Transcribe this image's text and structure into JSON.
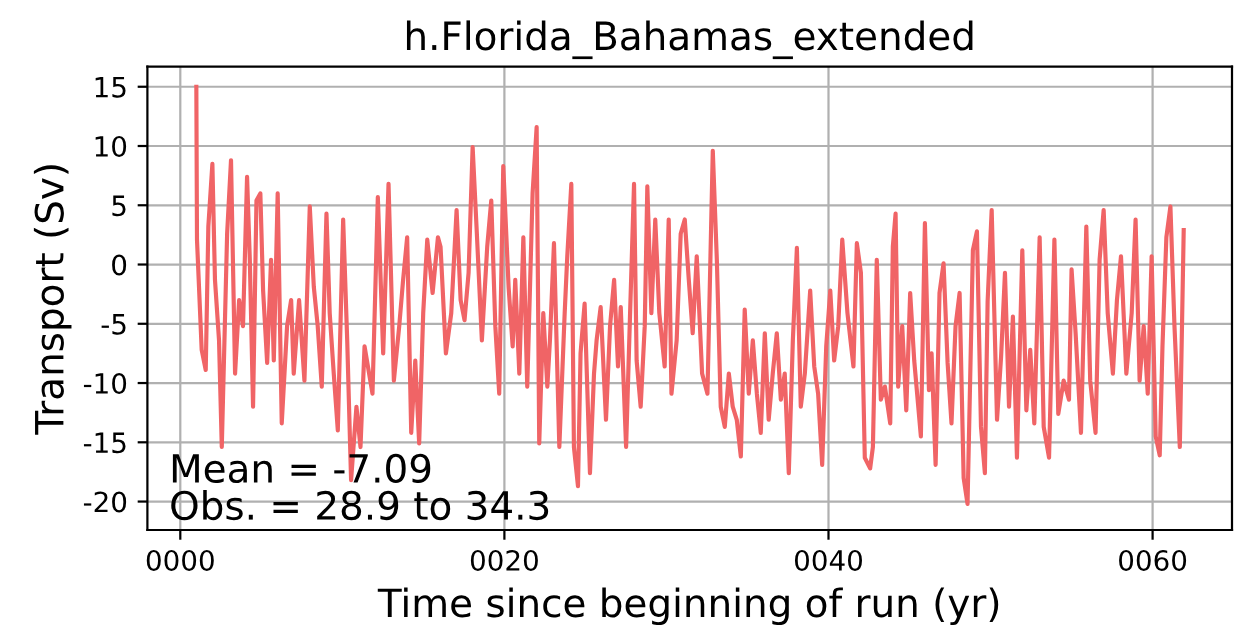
{
  "chart_data": {
    "type": "line",
    "title": "h.Florida_Bahamas_extended",
    "xlabel": "Time since beginning of run (yr)",
    "ylabel": "Transport (Sv)",
    "xlim": [
      -2.03,
      64.9
    ],
    "ylim": [
      -22.4,
      16.7
    ],
    "xticks": [
      {
        "value": 0,
        "label": "0000"
      },
      {
        "value": 20,
        "label": "0020"
      },
      {
        "value": 40,
        "label": "0040"
      },
      {
        "value": 60,
        "label": "0060"
      }
    ],
    "yticks": [
      -20,
      -15,
      -10,
      -5,
      0,
      5,
      10,
      15
    ],
    "grid": true,
    "annotations": [
      "Mean = -7.09",
      "Obs. = 28.9 to 34.3"
    ],
    "series": [
      {
        "color": "#f06466",
        "x": [
          0.99,
          1.03,
          1.32,
          1.57,
          1.73,
          1.98,
          2.14,
          2.39,
          2.56,
          2.89,
          3.13,
          3.38,
          3.63,
          3.87,
          4.12,
          4.29,
          4.49,
          4.7,
          4.94,
          5.11,
          5.36,
          5.6,
          5.77,
          6.01,
          6.26,
          6.59,
          6.84,
          7.0,
          7.33,
          7.66,
          7.99,
          8.24,
          8.48,
          8.73,
          9.02,
          9.22,
          9.47,
          9.72,
          10.05,
          10.3,
          10.54,
          10.87,
          11.12,
          11.37,
          11.86,
          12.19,
          12.52,
          12.85,
          13.18,
          13.51,
          13.75,
          14.0,
          14.25,
          14.5,
          14.74,
          14.99,
          15.24,
          15.57,
          15.9,
          16.06,
          16.39,
          16.72,
          17.05,
          17.3,
          17.54,
          17.79,
          18.04,
          18.28,
          18.61,
          18.94,
          19.19,
          19.44,
          19.68,
          19.93,
          20.26,
          20.51,
          20.67,
          20.92,
          21.17,
          21.41,
          21.74,
          21.99,
          22.15,
          22.4,
          22.65,
          22.81,
          23.06,
          23.39,
          23.72,
          23.88,
          24.13,
          24.29,
          24.54,
          24.7,
          24.95,
          25.28,
          25.53,
          25.69,
          25.94,
          26.27,
          26.52,
          26.77,
          27.01,
          27.18,
          27.51,
          27.75,
          28.0,
          28.16,
          28.41,
          28.66,
          28.82,
          29.07,
          29.31,
          29.56,
          29.89,
          30.14,
          30.31,
          30.63,
          30.88,
          31.13,
          31.38,
          31.62,
          31.87,
          32.2,
          32.53,
          32.86,
          33.11,
          33.35,
          33.6,
          33.85,
          34.09,
          34.34,
          34.59,
          34.83,
          35.08,
          35.33,
          35.58,
          35.82,
          36.07,
          36.31,
          36.56,
          36.81,
          37.06,
          37.3,
          37.55,
          37.8,
          38.05,
          38.29,
          38.54,
          38.87,
          39.12,
          39.36,
          39.61,
          39.86,
          40.11,
          40.35,
          40.6,
          40.85,
          41.17,
          41.54,
          41.75,
          42.0,
          42.24,
          42.57,
          42.74,
          42.98,
          43.23,
          43.48,
          43.81,
          43.97,
          44.14,
          44.3,
          44.55,
          44.8,
          45.04,
          45.29,
          45.7,
          45.95,
          46.2,
          46.36,
          46.61,
          46.85,
          47.1,
          47.35,
          47.59,
          47.84,
          48.09,
          48.34,
          48.58,
          48.91,
          49.16,
          49.41,
          49.65,
          49.82,
          50.07,
          50.4,
          50.65,
          50.89,
          51.14,
          51.38,
          51.63,
          51.96,
          52.21,
          52.45,
          52.7,
          53.03,
          53.28,
          53.61,
          53.94,
          54.18,
          54.51,
          54.84,
          55.0,
          55.25,
          55.58,
          55.91,
          56.15,
          56.48,
          56.73,
          56.98,
          57.23,
          57.55,
          57.8,
          58.05,
          58.38,
          58.71,
          58.95,
          59.2,
          59.45,
          59.7,
          59.94,
          60.19,
          60.44,
          60.61,
          60.85,
          61.1,
          61.35,
          61.68,
          61.92
        ],
        "values": [
          15,
          2.1,
          -7.2,
          -8.9,
          3.2,
          8.5,
          -1.3,
          -6.4,
          -15.4,
          2.6,
          8.8,
          -9.2,
          -3.0,
          -5.2,
          7.4,
          0.4,
          -12,
          5.4,
          6.0,
          -2.2,
          -8.3,
          0.4,
          -8.1,
          6.0,
          -13.4,
          -5.2,
          -3.0,
          -9.2,
          -3.0,
          -9.8,
          4.9,
          -1.9,
          -5.2,
          -10.3,
          4.3,
          -4.1,
          -9.2,
          -14,
          3.8,
          -6.4,
          -18.2,
          -12,
          -15.4,
          -6.9,
          -10.9,
          5.7,
          -7.5,
          6.8,
          -9.8,
          -5.2,
          -1.3,
          2.3,
          -14.2,
          -8.1,
          -15.1,
          -4.1,
          2.1,
          -2.4,
          2.3,
          1.5,
          -7.5,
          -4.1,
          4.6,
          -3.0,
          -4.7,
          -0.7,
          9.9,
          3.2,
          -6.4,
          1.5,
          5.4,
          -5.2,
          -10.9,
          8.3,
          -1.9,
          -6.9,
          -1.3,
          -9.2,
          2.3,
          -10.3,
          6.0,
          11.6,
          -15.1,
          -4.1,
          -10.3,
          -6.4,
          1.8,
          -15.4,
          -4.1,
          0.7,
          6.8,
          -15.4,
          -18.7,
          -7.5,
          -3.3,
          -17.6,
          -9.2,
          -6.4,
          -3.6,
          -13.1,
          -5.2,
          -1.3,
          -8.6,
          -3.6,
          -15.4,
          -4.4,
          6.8,
          -8.1,
          -12,
          -5.2,
          6.6,
          -4.1,
          3.8,
          -4.1,
          -8.6,
          3.8,
          -10.9,
          -6.4,
          2.6,
          3.8,
          -1.3,
          -5.8,
          0.7,
          -9.2,
          -10.9,
          9.6,
          0.4,
          -12,
          -13.7,
          -9.2,
          -12,
          -13.1,
          -16.2,
          -3.8,
          -10.9,
          -6.4,
          -10.9,
          -14.2,
          -5.8,
          -13.1,
          -9.2,
          -5.8,
          -11.4,
          -9.2,
          -17.6,
          -6.4,
          1.4,
          -12,
          -9.2,
          -2.2,
          -8.6,
          -10.9,
          -16.9,
          -6.9,
          -2.2,
          -8.1,
          -5.2,
          2.1,
          -4.1,
          -8.6,
          1.8,
          -0.7,
          -16.3,
          -17.2,
          -15.4,
          0.4,
          -11.4,
          -10.3,
          -13.4,
          1.5,
          4.3,
          -10.3,
          -5.2,
          -12.3,
          -2.4,
          -8.1,
          -14.5,
          3.5,
          -10.6,
          -7.5,
          -16.9,
          -2.4,
          0.1,
          -8.3,
          -13.4,
          -5.2,
          -2.4,
          -18,
          -20.2,
          1.2,
          2.8,
          -13.7,
          -17.6,
          -3.1,
          4.6,
          -13.1,
          -7.8,
          -0.7,
          -12,
          -4.4,
          -16.3,
          1.2,
          -12.3,
          -7.2,
          -13.4,
          2.3,
          -13.7,
          -16.3,
          2.1,
          -12.6,
          -9.8,
          -11.4,
          -0.4,
          -5.8,
          -14.2,
          3.2,
          -9.8,
          -14.2,
          0.4,
          4.6,
          -4.1,
          -9.2,
          -3.0,
          0.7,
          -9.2,
          -4.1,
          3.8,
          -9.8,
          -5.2,
          -10.9,
          0.7,
          -14.5,
          -16.1,
          -6.9,
          2.3,
          4.9,
          -5.2,
          -15.4,
          2.9
        ]
      }
    ]
  }
}
